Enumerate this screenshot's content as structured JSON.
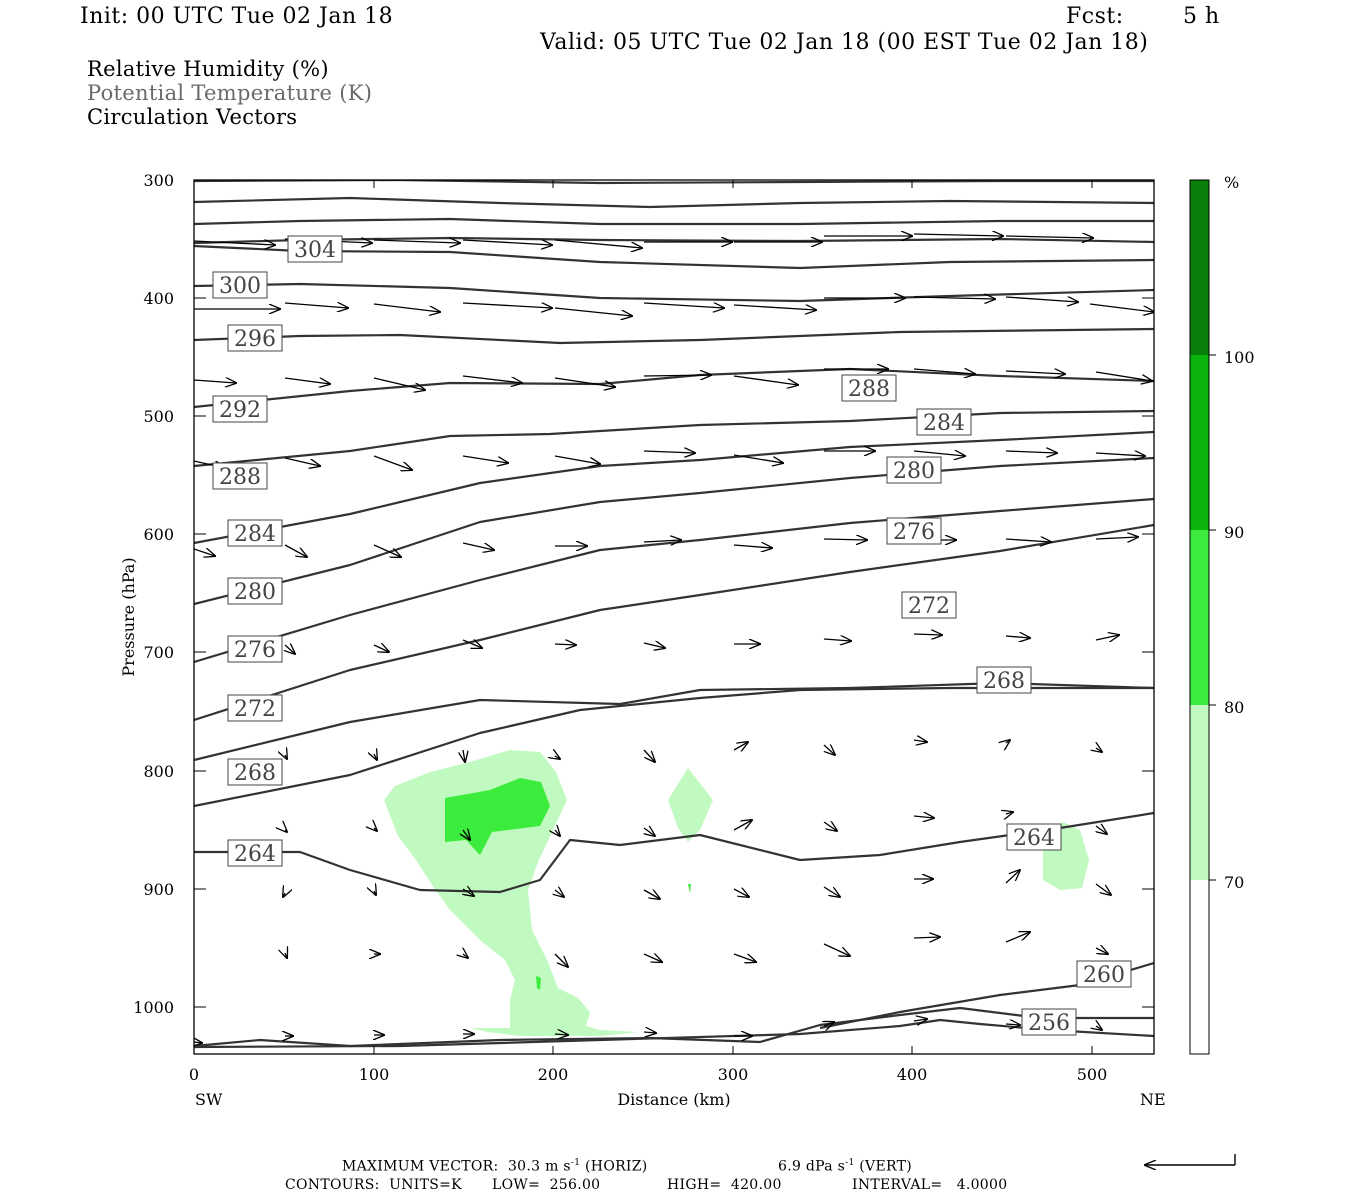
{
  "header": {
    "init": "Init: 00 UTC Tue 02 Jan 18",
    "fcst_label": "Fcst:",
    "fcst_value": "5 h",
    "valid": "Valid: 05 UTC Tue 02 Jan 18 (00 EST Tue 02 Jan 18)"
  },
  "legend": {
    "line1": "Relative Humidity (%)",
    "line2": "Potential Temperature (K)",
    "line3": "Circulation Vectors"
  },
  "footer": {
    "max_vector": "MAXIMUM VECTOR:  30.3 m s",
    "max_vector_exp": "-1",
    "max_vector_horiz": " (HORIZ)",
    "max_vector_vert": "6.9 dPa s",
    "max_vector_vert_exp": "-1",
    "max_vector_vert_suffix": " (VERT)",
    "contours_units": "CONTOURS:  UNITS=K",
    "contours_low": "LOW=  256.00",
    "contours_high": "HIGH=  420.00",
    "contours_interval": "INTERVAL=   4.0000"
  },
  "colorbar": {
    "unit": "%",
    "levels": [
      "70",
      "80",
      "90",
      "100"
    ],
    "colors": [
      "#ffffff",
      "#c0fac0",
      "#3cec3c",
      "#0ab40a",
      "#0a800a"
    ]
  },
  "chart_data": {
    "type": "cross-section",
    "xlabel": "Distance (km)",
    "ylabel": "Pressure (hPa)",
    "xlim": [
      0,
      535
    ],
    "ylim": [
      1040,
      300
    ],
    "y_scale": "log",
    "x_ticks": [
      "0",
      "100",
      "200",
      "300",
      "400",
      "500"
    ],
    "y_ticks": [
      "300",
      "400",
      "500",
      "600",
      "700",
      "800",
      "900",
      "1000"
    ],
    "x_end_labels": {
      "left": "SW",
      "right": "NE"
    },
    "theta_contours": {
      "units": "K",
      "low": 256,
      "high": 420,
      "interval": 4,
      "labels": [
        "304",
        "300",
        "296",
        "292",
        "288",
        "284",
        "280",
        "276",
        "272",
        "268",
        "264",
        "288",
        "284",
        "280",
        "276",
        "272",
        "268",
        "264",
        "260",
        "256"
      ]
    },
    "rh_shading": {
      "units": "%",
      "levels": [
        70,
        80,
        90,
        100
      ]
    },
    "vectors": {
      "max_horizontal": "30.3 m s-1",
      "max_vertical": "6.9 dPa s-1"
    }
  }
}
